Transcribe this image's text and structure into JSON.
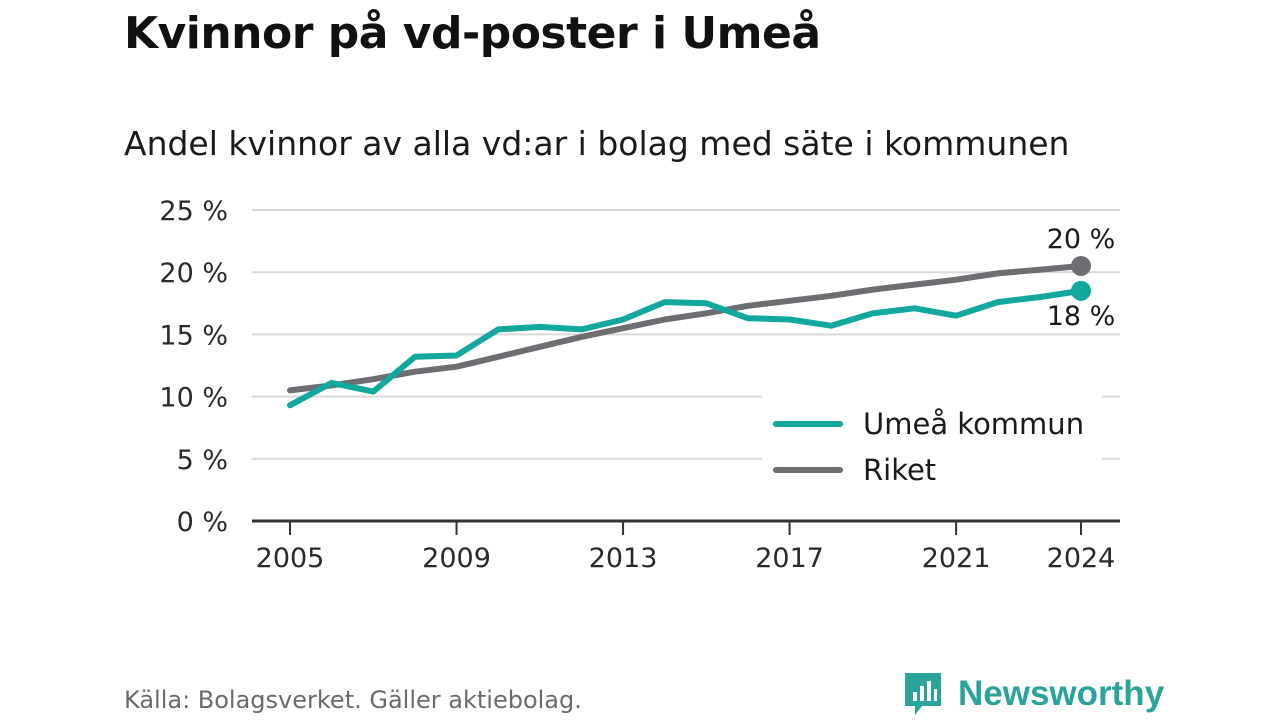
{
  "title": "Kvinnor på vd-poster i Umeå",
  "subtitle": "Andel kvinnor av alla vd:ar i bolag med säte i kommunen",
  "source": "Källa: Bolagsverket. Gäller aktiebolag.",
  "brand": "Newsworthy",
  "colors": {
    "umea": "#13a89e",
    "riket": "#6e6d72",
    "grid": "#d9d9d9",
    "axis": "#333333",
    "brand": "#2aa39a"
  },
  "chart_data": {
    "type": "line",
    "x": [
      2005,
      2006,
      2007,
      2008,
      2009,
      2010,
      2011,
      2012,
      2013,
      2014,
      2015,
      2016,
      2017,
      2018,
      2019,
      2020,
      2021,
      2022,
      2023,
      2024
    ],
    "series": [
      {
        "name": "Umeå kommun",
        "color": "#13a89e",
        "values": [
          9.3,
          11.1,
          10.4,
          13.2,
          13.3,
          15.4,
          15.6,
          15.4,
          16.2,
          17.6,
          17.5,
          16.3,
          16.2,
          15.7,
          16.7,
          17.1,
          16.5,
          17.6,
          18.0,
          18.5
        ],
        "end_label": "18 %"
      },
      {
        "name": "Riket",
        "color": "#6e6d72",
        "values": [
          10.5,
          10.9,
          11.4,
          12.0,
          12.4,
          13.2,
          14.0,
          14.8,
          15.5,
          16.2,
          16.7,
          17.3,
          17.7,
          18.1,
          18.6,
          19.0,
          19.4,
          19.9,
          20.2,
          20.5
        ],
        "end_label": "20 %"
      }
    ],
    "x_ticks": [
      2005,
      2009,
      2013,
      2017,
      2021,
      2024
    ],
    "x_tick_labels": [
      "2005",
      "2009",
      "2013",
      "2017",
      "2021",
      "2024"
    ],
    "y_ticks": [
      0,
      5,
      10,
      15,
      20,
      25
    ],
    "y_tick_labels": [
      "0 %",
      "5 %",
      "10 %",
      "15 %",
      "20 %",
      "25 %"
    ],
    "xlim": [
      2005,
      2024
    ],
    "ylim": [
      0,
      25
    ],
    "xlabel": "",
    "ylabel": "",
    "grid": "horizontal",
    "legend": {
      "position": "bottom-right",
      "entries": [
        "Umeå kommun",
        "Riket"
      ]
    }
  }
}
